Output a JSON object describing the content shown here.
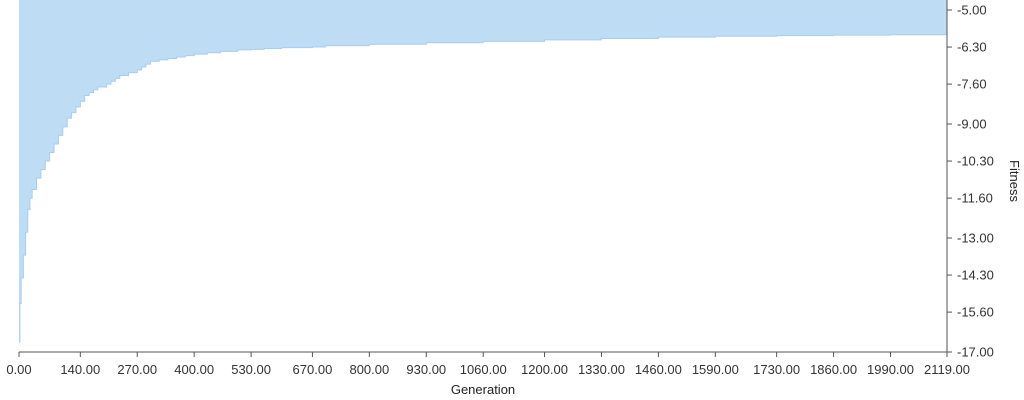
{
  "chart_data": {
    "type": "area",
    "title": "",
    "xlabel": "Generation",
    "ylabel": "Fitness",
    "xlim": [
      0,
      2119
    ],
    "ylim": [
      -17,
      -5
    ],
    "x_ticks": [
      "0.00",
      "140.00",
      "270.00",
      "400.00",
      "530.00",
      "670.00",
      "800.00",
      "930.00",
      "1060.00",
      "1200.00",
      "1330.00",
      "1460.00",
      "1590.00",
      "1730.00",
      "1860.00",
      "1990.00",
      "2119.00"
    ],
    "x_tick_values": [
      0,
      140,
      270,
      400,
      530,
      670,
      800,
      930,
      1060,
      1200,
      1330,
      1460,
      1590,
      1730,
      1860,
      1990,
      2119
    ],
    "y_ticks": [
      "-5.00",
      "-6.30",
      "-7.60",
      "-9.00",
      "-10.30",
      "-11.60",
      "-13.00",
      "-14.30",
      "-15.60",
      "-17.00"
    ],
    "y_tick_values": [
      -5,
      -6.3,
      -7.6,
      -9,
      -10.3,
      -11.6,
      -13,
      -14.3,
      -15.6,
      -17
    ],
    "y_axis_position": "right",
    "fill_color": "#bfdcf5",
    "line_color": "#a9cdee",
    "series": [
      {
        "x": [
          0,
          2,
          5,
          10,
          15,
          20,
          25,
          30,
          40,
          50,
          60,
          70,
          80,
          90,
          100,
          110,
          120,
          130,
          140,
          150,
          160,
          170,
          180,
          190,
          200,
          210,
          220,
          230,
          240,
          250,
          260,
          270,
          280,
          290,
          300,
          320,
          340,
          360,
          380,
          400,
          430,
          460,
          500,
          530,
          560,
          600,
          670,
          700,
          800,
          930,
          1060,
          1200,
          1330,
          1460,
          1590,
          1730,
          1860,
          1990,
          2119
        ],
        "y": [
          -16.65,
          -15.3,
          -14.4,
          -13.6,
          -12.8,
          -12.0,
          -11.6,
          -11.3,
          -10.9,
          -10.6,
          -10.3,
          -10.0,
          -9.7,
          -9.4,
          -9.1,
          -8.8,
          -8.6,
          -8.4,
          -8.2,
          -8.0,
          -7.9,
          -7.8,
          -7.7,
          -7.7,
          -7.6,
          -7.5,
          -7.4,
          -7.3,
          -7.3,
          -7.2,
          -7.2,
          -7.1,
          -7.0,
          -6.9,
          -6.8,
          -6.75,
          -6.7,
          -6.65,
          -6.6,
          -6.55,
          -6.5,
          -6.45,
          -6.4,
          -6.38,
          -6.35,
          -6.32,
          -6.3,
          -6.25,
          -6.2,
          -6.15,
          -6.1,
          -6.05,
          -6.0,
          -5.95,
          -5.92,
          -5.9,
          -5.88,
          -5.87,
          -5.86
        ]
      }
    ]
  }
}
